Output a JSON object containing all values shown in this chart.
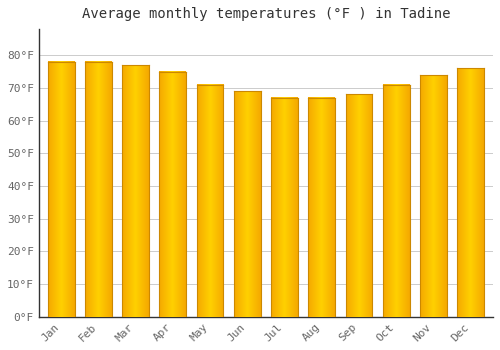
{
  "title": "Average monthly temperatures (°F ) in Tadine",
  "months": [
    "Jan",
    "Feb",
    "Mar",
    "Apr",
    "May",
    "Jun",
    "Jul",
    "Aug",
    "Sep",
    "Oct",
    "Nov",
    "Dec"
  ],
  "values": [
    78,
    78,
    77,
    75,
    71,
    69,
    67,
    67,
    68,
    71,
    74,
    76
  ],
  "bar_color_left": "#F5A800",
  "bar_color_center": "#FFD966",
  "bar_color_right": "#F5A800",
  "bar_edge_color": "#CC8800",
  "background_color": "#FFFFFF",
  "grid_color": "#CCCCCC",
  "ylim": [
    0,
    88
  ],
  "yticks": [
    0,
    10,
    20,
    30,
    40,
    50,
    60,
    70,
    80
  ],
  "ytick_labels": [
    "0°F",
    "10°F",
    "20°F",
    "30°F",
    "40°F",
    "50°F",
    "60°F",
    "70°F",
    "80°F"
  ],
  "title_fontsize": 10,
  "tick_fontsize": 8,
  "font_color": "#666666",
  "title_color": "#333333"
}
